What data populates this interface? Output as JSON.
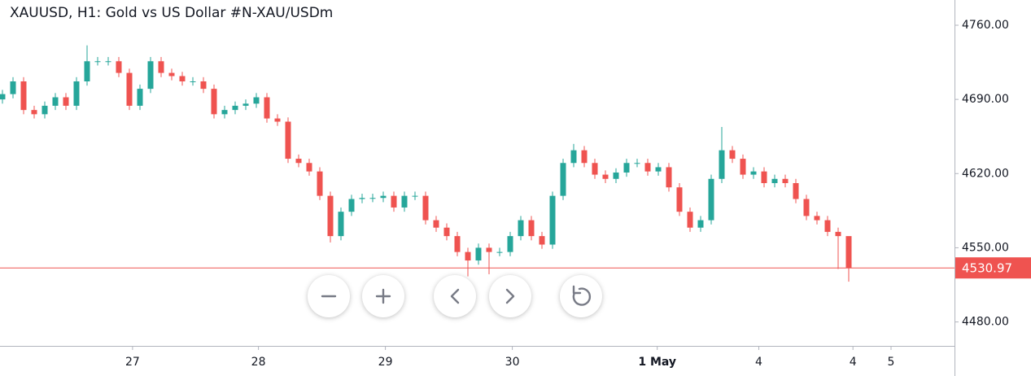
{
  "chart_data": {
    "type": "candlestick",
    "title": "XAUUSD, H1: Gold vs US Dollar #N-XAU/USDm",
    "x": [
      0,
      1,
      2,
      3,
      4,
      5,
      6,
      7,
      8,
      9,
      10,
      11,
      12,
      13,
      14,
      15,
      16,
      17,
      18,
      19,
      20,
      21,
      22,
      23,
      24,
      25,
      26,
      27,
      28,
      29,
      30,
      31,
      32,
      33,
      34,
      35,
      36,
      37,
      38,
      39,
      40,
      41,
      42,
      43,
      44,
      45,
      46,
      47,
      48,
      49,
      50,
      51,
      52,
      53,
      54,
      55,
      56,
      57,
      58,
      59,
      60,
      61,
      62,
      63,
      64,
      65,
      66,
      67,
      68,
      69,
      70,
      71,
      72,
      73,
      74,
      75,
      76,
      77,
      78,
      79,
      80
    ],
    "open": [
      4690,
      4695,
      4707,
      4680,
      4676,
      4684,
      4692,
      4684,
      4707,
      4726,
      4726,
      4726,
      4715,
      4684,
      4700,
      4726,
      4715,
      4712,
      4707,
      4707,
      4700,
      4676,
      4680,
      4684,
      4686,
      4692,
      4672,
      4669,
      4634,
      4630,
      4622,
      4599,
      4561,
      4584,
      4596,
      4597,
      4597,
      4599,
      4588,
      4599,
      4599,
      4576,
      4569,
      4561,
      4546,
      4538,
      4550,
      4546,
      4546,
      4561,
      4576,
      4561,
      4553,
      4599,
      4630,
      4642,
      4630,
      4619,
      4615,
      4621,
      4630,
      4630,
      4622,
      4626,
      4607,
      4584,
      4569,
      4576,
      4615,
      4642,
      4634,
      4619,
      4622,
      4611,
      4615,
      4611,
      4596,
      4580,
      4576,
      4565,
      4561
    ],
    "high": [
      4699,
      4711,
      4711,
      4684,
      4688,
      4696,
      4696,
      4711,
      4741,
      4730,
      4730,
      4730,
      4719,
      4704,
      4730,
      4730,
      4719,
      4716,
      4711,
      4711,
      4704,
      4684,
      4688,
      4690,
      4696,
      4696,
      4676,
      4673,
      4638,
      4634,
      4626,
      4603,
      4588,
      4600,
      4601,
      4601,
      4603,
      4603,
      4603,
      4603,
      4603,
      4580,
      4573,
      4565,
      4550,
      4554,
      4554,
      4550,
      4565,
      4580,
      4580,
      4565,
      4603,
      4634,
      4648,
      4646,
      4634,
      4623,
      4625,
      4634,
      4634,
      4634,
      4630,
      4630,
      4611,
      4588,
      4580,
      4619,
      4664,
      4646,
      4638,
      4626,
      4626,
      4619,
      4619,
      4615,
      4600,
      4584,
      4580,
      4569,
      4560
    ],
    "low": [
      4686,
      4691,
      4676,
      4672,
      4672,
      4680,
      4680,
      4680,
      4703,
      4722,
      4722,
      4711,
      4680,
      4680,
      4696,
      4711,
      4708,
      4703,
      4703,
      4696,
      4672,
      4672,
      4676,
      4680,
      4682,
      4668,
      4665,
      4630,
      4626,
      4618,
      4595,
      4555,
      4557,
      4580,
      4592,
      4593,
      4593,
      4584,
      4584,
      4595,
      4572,
      4565,
      4557,
      4542,
      4523,
      4534,
      4525,
      4542,
      4542,
      4557,
      4557,
      4549,
      4549,
      4595,
      4626,
      4626,
      4615,
      4611,
      4611,
      4617,
      4626,
      4618,
      4618,
      4603,
      4580,
      4565,
      4565,
      4572,
      4611,
      4630,
      4615,
      4615,
      4607,
      4607,
      4607,
      4592,
      4576,
      4572,
      4561,
      4530,
      4518
    ],
    "close": [
      4695,
      4707,
      4680,
      4676,
      4684,
      4692,
      4684,
      4707,
      4726,
      4726,
      4726,
      4715,
      4684,
      4700,
      4726,
      4715,
      4712,
      4707,
      4707,
      4700,
      4676,
      4680,
      4684,
      4686,
      4692,
      4672,
      4669,
      4634,
      4630,
      4622,
      4599,
      4561,
      4584,
      4596,
      4597,
      4597,
      4599,
      4588,
      4599,
      4599,
      4576,
      4569,
      4561,
      4546,
      4538,
      4550,
      4546,
      4546,
      4561,
      4576,
      4561,
      4553,
      4599,
      4630,
      4642,
      4630,
      4619,
      4615,
      4621,
      4630,
      4630,
      4622,
      4626,
      4607,
      4584,
      4569,
      4576,
      4615,
      4642,
      4634,
      4619,
      4622,
      4611,
      4615,
      4611,
      4596,
      4580,
      4576,
      4565,
      4561,
      4531
    ],
    "up_color": "#26a69a",
    "down_color": "#ef5350",
    "xlim": [
      -0.23,
      89.77
    ],
    "xticks": [
      {
        "value": 12.3,
        "label": "27"
      },
      {
        "value": 24.2,
        "label": "28"
      },
      {
        "value": 36.2,
        "label": "29"
      },
      {
        "value": 48.2,
        "label": "30"
      },
      {
        "value": 61.9,
        "label": "1 May"
      },
      {
        "value": 71.5,
        "label": "4"
      },
      {
        "value": 80.4,
        "label": "4"
      },
      {
        "value": 84,
        "label": "5"
      }
    ],
    "ylim": [
      4457.4,
      4783.8
    ],
    "yticks": [
      {
        "value": 4480,
        "label": "4480.00"
      },
      {
        "value": 4550,
        "label": "4550.00"
      },
      {
        "value": 4620,
        "label": "4620.00"
      },
      {
        "value": 4690,
        "label": "4690.00"
      },
      {
        "value": 4760,
        "label": "4760.00"
      }
    ],
    "last_price": 4530.97,
    "last_price_color": "#ef5350"
  }
}
